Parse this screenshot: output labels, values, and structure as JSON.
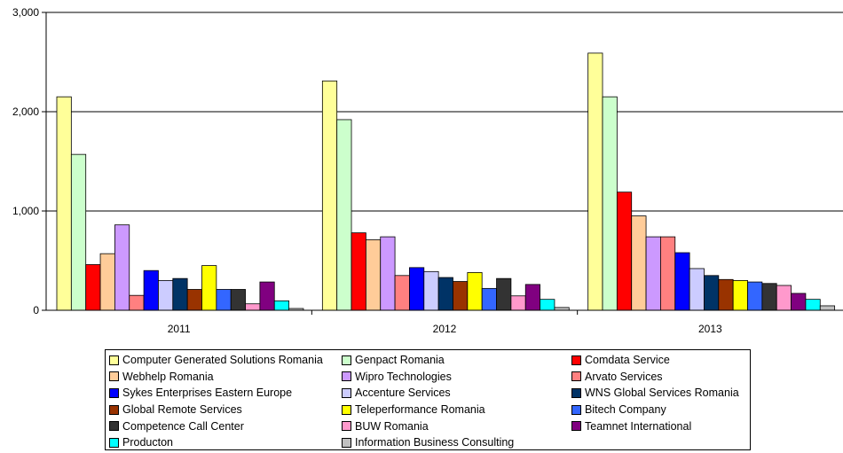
{
  "chart_data": {
    "type": "bar",
    "categories": [
      "2011",
      "2012",
      "2013"
    ],
    "ylim": [
      0,
      3000
    ],
    "yticks": [
      0,
      1000,
      2000,
      3000
    ],
    "ytick_labels": [
      "0",
      "1,000",
      "2,000",
      "3,000"
    ],
    "grid": "horizontal",
    "legend_position": "bottom",
    "title": "",
    "xlabel": "",
    "ylabel": "",
    "series": [
      {
        "name": "Computer Generated Solutions Romania",
        "color": "#FFFF99",
        "values": [
          2150,
          2310,
          2590
        ]
      },
      {
        "name": "Genpact Romania",
        "color": "#CCFFCC",
        "values": [
          1570,
          1920,
          2150
        ]
      },
      {
        "name": "Comdata Service",
        "color": "#FF0000",
        "values": [
          460,
          780,
          1190
        ]
      },
      {
        "name": "Webhelp Romania",
        "color": "#FFCC99",
        "values": [
          570,
          710,
          950
        ]
      },
      {
        "name": "Wipro Technologies",
        "color": "#CC99FF",
        "values": [
          860,
          740,
          740
        ]
      },
      {
        "name": "Arvato Services",
        "color": "#FF8080",
        "values": [
          150,
          350,
          740
        ]
      },
      {
        "name": "Sykes Enterprises Eastern Europe",
        "color": "#0000FF",
        "values": [
          400,
          430,
          580
        ]
      },
      {
        "name": "Accenture Services",
        "color": "#CCCCFF",
        "values": [
          300,
          390,
          420
        ]
      },
      {
        "name": "WNS Global Services Romania",
        "color": "#003366",
        "values": [
          320,
          330,
          350
        ]
      },
      {
        "name": "Global Remote Services",
        "color": "#993300",
        "values": [
          210,
          290,
          310
        ]
      },
      {
        "name": "Teleperformance Romania",
        "color": "#FFFF00",
        "values": [
          450,
          380,
          300
        ]
      },
      {
        "name": "Bitech Company",
        "color": "#3366FF",
        "values": [
          210,
          220,
          285
        ]
      },
      {
        "name": "Competence Call Center",
        "color": "#333333",
        "values": [
          210,
          320,
          270
        ]
      },
      {
        "name": "BUW Romania",
        "color": "#FF99CC",
        "values": [
          65,
          145,
          250
        ]
      },
      {
        "name": "Teamnet International",
        "color": "#800080",
        "values": [
          285,
          260,
          170
        ]
      },
      {
        "name": "Producton",
        "color": "#00FFFF",
        "values": [
          95,
          110,
          110
        ]
      },
      {
        "name": "Information Business Consulting",
        "color": "#C0C0C0",
        "values": [
          18,
          28,
          45
        ]
      }
    ]
  }
}
